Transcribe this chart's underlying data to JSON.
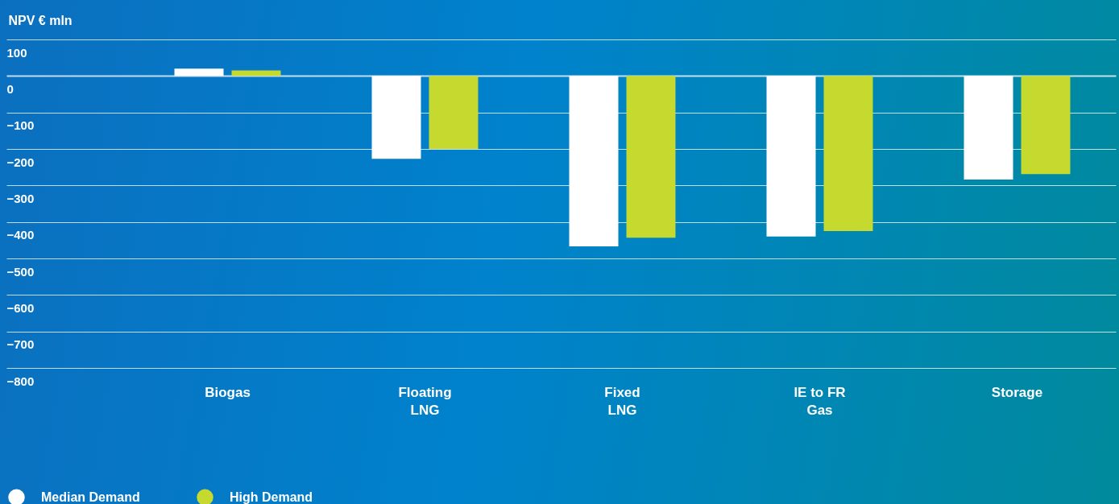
{
  "chart_data": {
    "type": "bar",
    "ylabel": "NPV € mln",
    "categories": [
      "Biogas",
      "Floating LNG",
      "Fixed LNG",
      "IE to FR Gas",
      "Storage"
    ],
    "series": [
      {
        "name": "Median Demand",
        "color": "#ffffff",
        "values": [
          20,
          -227,
          -467,
          -440,
          -284
        ]
      },
      {
        "name": "High Demand",
        "color": "#c5d92e",
        "values": [
          15,
          -200,
          -443,
          -425,
          -269
        ]
      }
    ],
    "ylim": [
      -800,
      100
    ],
    "yticks": [
      -800,
      -700,
      -600,
      -500,
      -400,
      -300,
      -200,
      -100,
      0,
      100
    ],
    "grid": "y",
    "legend": "bottom left"
  }
}
